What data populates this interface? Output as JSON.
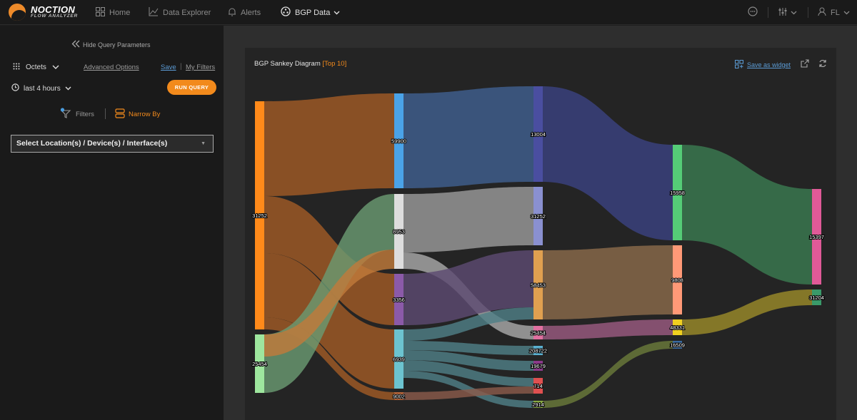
{
  "app": {
    "logo_title": "NOCTION",
    "logo_subtitle": "FLOW ANALYZER"
  },
  "nav": {
    "home": "Home",
    "data_explorer": "Data Explorer",
    "alerts": "Alerts",
    "bgp_data": "BGP Data",
    "user_initials": "FL"
  },
  "sidebar": {
    "hide_params": "Hide Query Parameters",
    "metric": "Octets",
    "advanced_options": "Advanced Options",
    "save": "Save",
    "my_filters": "My Filters",
    "time_range": "last 4 hours",
    "run_query": "RUN QUERY",
    "filters": "Filters",
    "narrow_by": "Narrow By",
    "location_select": "Select Location(s) / Device(s) / Interface(s)"
  },
  "panel": {
    "title": "BGP Sankey Diagram",
    "title_suffix": "[Top 10]",
    "save_widget": "Save as widget"
  },
  "colors": {
    "accent": "#f28a1c",
    "link_blue": "#5b9bd5"
  },
  "chart_data": {
    "type": "sankey",
    "nodes": [
      {
        "id": "a1",
        "label": "31252",
        "column": 0,
        "color": "#ff8a1a"
      },
      {
        "id": "a2",
        "label": "25454",
        "column": 0,
        "color": "#9ee69e"
      },
      {
        "id": "b1",
        "label": "59900",
        "column": 1,
        "color": "#4aa3e8"
      },
      {
        "id": "b2",
        "label": "8953",
        "column": 1,
        "color": "#dddddd"
      },
      {
        "id": "b3",
        "label": "3356",
        "column": 1,
        "color": "#8b5aa8"
      },
      {
        "id": "b4",
        "label": "6939",
        "column": 1,
        "color": "#6cc3cf"
      },
      {
        "id": "b5",
        "label": "9002",
        "column": 1,
        "color": "#b5653a"
      },
      {
        "id": "c1",
        "label": "13004",
        "column": 2,
        "color": "#4a4ea0"
      },
      {
        "id": "c2",
        "label": "31252",
        "column": 2,
        "color": "#8a90d0"
      },
      {
        "id": "c3",
        "label": "58453",
        "column": 2,
        "color": "#e0a050"
      },
      {
        "id": "c4",
        "label": "25454",
        "column": 2,
        "color": "#e070a0"
      },
      {
        "id": "c5",
        "label": "208722",
        "column": 2,
        "color": "#5ab0d0"
      },
      {
        "id": "c6",
        "label": "19679",
        "column": 2,
        "color": "#8a3a8a"
      },
      {
        "id": "c7",
        "label": "714",
        "column": 2,
        "color": "#e05050"
      },
      {
        "id": "c8",
        "label": "2914",
        "column": 2,
        "color": "#88aa44"
      },
      {
        "id": "d1",
        "label": "15958",
        "column": 3,
        "color": "#55cc77"
      },
      {
        "id": "d2",
        "label": "9808",
        "column": 3,
        "color": "#ff9977"
      },
      {
        "id": "d3",
        "label": "48331",
        "column": 3,
        "color": "#f0d020"
      },
      {
        "id": "d4",
        "label": "16509",
        "column": 3,
        "color": "#3a6aa0"
      },
      {
        "id": "e1",
        "label": "15397",
        "column": 4,
        "color": "#e05a98"
      },
      {
        "id": "e2",
        "label": "31204",
        "column": 4,
        "color": "#3a9a6a"
      }
    ],
    "links": [
      {
        "source": "a1",
        "target": "b1",
        "color": "#a05a26"
      },
      {
        "source": "a1",
        "target": "b3",
        "color": "#a05a26"
      },
      {
        "source": "a1",
        "target": "b4",
        "color": "#a05a26"
      },
      {
        "source": "a1",
        "target": "b5",
        "color": "#a05a26"
      },
      {
        "source": "a2",
        "target": "b2",
        "color": "#6a9a72"
      },
      {
        "source": "a2",
        "target": "b3",
        "color": "#c07a3a"
      },
      {
        "source": "b1",
        "target": "c1",
        "color": "#3f5f8f"
      },
      {
        "source": "b2",
        "target": "c2",
        "color": "#9a9a9a"
      },
      {
        "source": "b2",
        "target": "c4",
        "color": "#a8a8a8"
      },
      {
        "source": "b3",
        "target": "c3",
        "color": "#5d4a72"
      },
      {
        "source": "b4",
        "target": "c3",
        "color": "#4f7f86"
      },
      {
        "source": "b4",
        "target": "c5",
        "color": "#4f7f86"
      },
      {
        "source": "b4",
        "target": "c6",
        "color": "#4f7f86"
      },
      {
        "source": "b4",
        "target": "c7",
        "color": "#4f7f86"
      },
      {
        "source": "b4",
        "target": "c8",
        "color": "#4f7f86"
      },
      {
        "source": "b5",
        "target": "c7",
        "color": "#8a5a4a"
      },
      {
        "source": "c1",
        "target": "d1",
        "color": "#3a4280"
      },
      {
        "source": "c3",
        "target": "d2",
        "color": "#8a6a4a"
      },
      {
        "source": "c4",
        "target": "d3",
        "color": "#9a5a80"
      },
      {
        "source": "c8",
        "target": "d4",
        "color": "#6a7a3a"
      },
      {
        "source": "d1",
        "target": "e1",
        "color": "#3a7a50"
      },
      {
        "source": "d3",
        "target": "e2",
        "color": "#9a8a2a"
      }
    ]
  }
}
